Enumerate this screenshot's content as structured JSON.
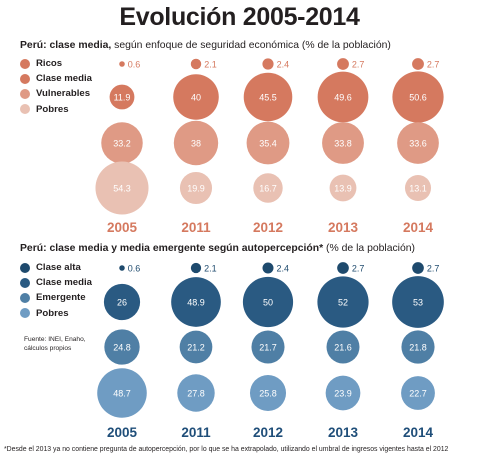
{
  "title": "Evolución 2005-2014",
  "chart_data": [
    {
      "type": "bubble",
      "title_bold": "Perú: clase media,",
      "title_rest": " según enfoque de seguridad económica (% de la población)",
      "categories": [
        "2005",
        "2011",
        "2012",
        "2013",
        "2014"
      ],
      "series": [
        {
          "name": "Ricos",
          "color": "#d5795f",
          "values": [
            0.6,
            2.1,
            2.4,
            2.7,
            2.7
          ]
        },
        {
          "name": "Clase media",
          "color": "#d5795f",
          "values": [
            11.9,
            40,
            45.5,
            49.6,
            50.6
          ]
        },
        {
          "name": "Vulnerables",
          "color": "#df9a85",
          "values": [
            33.2,
            38,
            35.4,
            33.8,
            33.6
          ]
        },
        {
          "name": "Pobres",
          "color": "#e9c1b3",
          "values": [
            54.3,
            19.9,
            16.7,
            13.9,
            13.1
          ]
        }
      ],
      "year_color": "#d5795f"
    },
    {
      "type": "bubble",
      "title_bold": "Perú: clase media y media emergente según autopercepción*",
      "title_rest": " (% de la población)",
      "categories": [
        "2005",
        "2011",
        "2012",
        "2013",
        "2014"
      ],
      "series": [
        {
          "name": "Clase alta",
          "color": "#1e4a6d",
          "values": [
            0.6,
            2.1,
            2.4,
            2.7,
            2.7
          ]
        },
        {
          "name": "Clase media",
          "color": "#2a5a82",
          "values": [
            26,
            48.9,
            50,
            52,
            53
          ]
        },
        {
          "name": "Emergente",
          "color": "#4f7fa5",
          "values": [
            24.8,
            21.2,
            21.7,
            21.6,
            21.8
          ]
        },
        {
          "name": "Pobres",
          "color": "#6f9cc3",
          "values": [
            48.7,
            27.8,
            25.8,
            23.9,
            22.7
          ]
        }
      ],
      "year_color": "#1f4e79"
    }
  ],
  "source_note": "Fuente: INEI, Enaho, cálculos propios",
  "footnote": "*Desde el 2013 ya no contiene pregunta de autopercepción, por lo que se ha extrapolado, utilizando el umbral de ingresos vigentes hasta el 2012"
}
